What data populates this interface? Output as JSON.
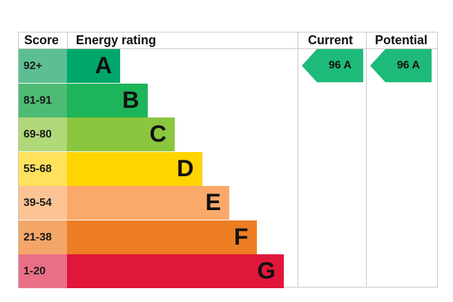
{
  "headers": {
    "score": "Score",
    "rating": "Energy rating",
    "current": "Current",
    "potential": "Potential"
  },
  "chart_data": {
    "type": "bar",
    "bands": [
      {
        "letter": "A",
        "range": "92+",
        "color": "#00a76b",
        "score_color": "#5cbf93"
      },
      {
        "letter": "B",
        "range": "81-91",
        "color": "#1eb459",
        "score_color": "#4dbb73"
      },
      {
        "letter": "C",
        "range": "69-80",
        "color": "#8cc63e",
        "score_color": "#b1d879"
      },
      {
        "letter": "D",
        "range": "55-68",
        "color": "#ffd400",
        "score_color": "#ffe15c"
      },
      {
        "letter": "E",
        "range": "39-54",
        "color": "#fba96b",
        "score_color": "#fcc395"
      },
      {
        "letter": "F",
        "range": "21-38",
        "color": "#ed7d22",
        "score_color": "#f3a668"
      },
      {
        "letter": "G",
        "range": "1-20",
        "color": "#e0163b",
        "score_color": "#ea6f86"
      }
    ],
    "current": {
      "value": 96,
      "band": "A",
      "text": "96  A",
      "color": "#1eba7a"
    },
    "potential": {
      "value": 96,
      "band": "A",
      "text": "96  A",
      "color": "#1eba7a"
    }
  }
}
